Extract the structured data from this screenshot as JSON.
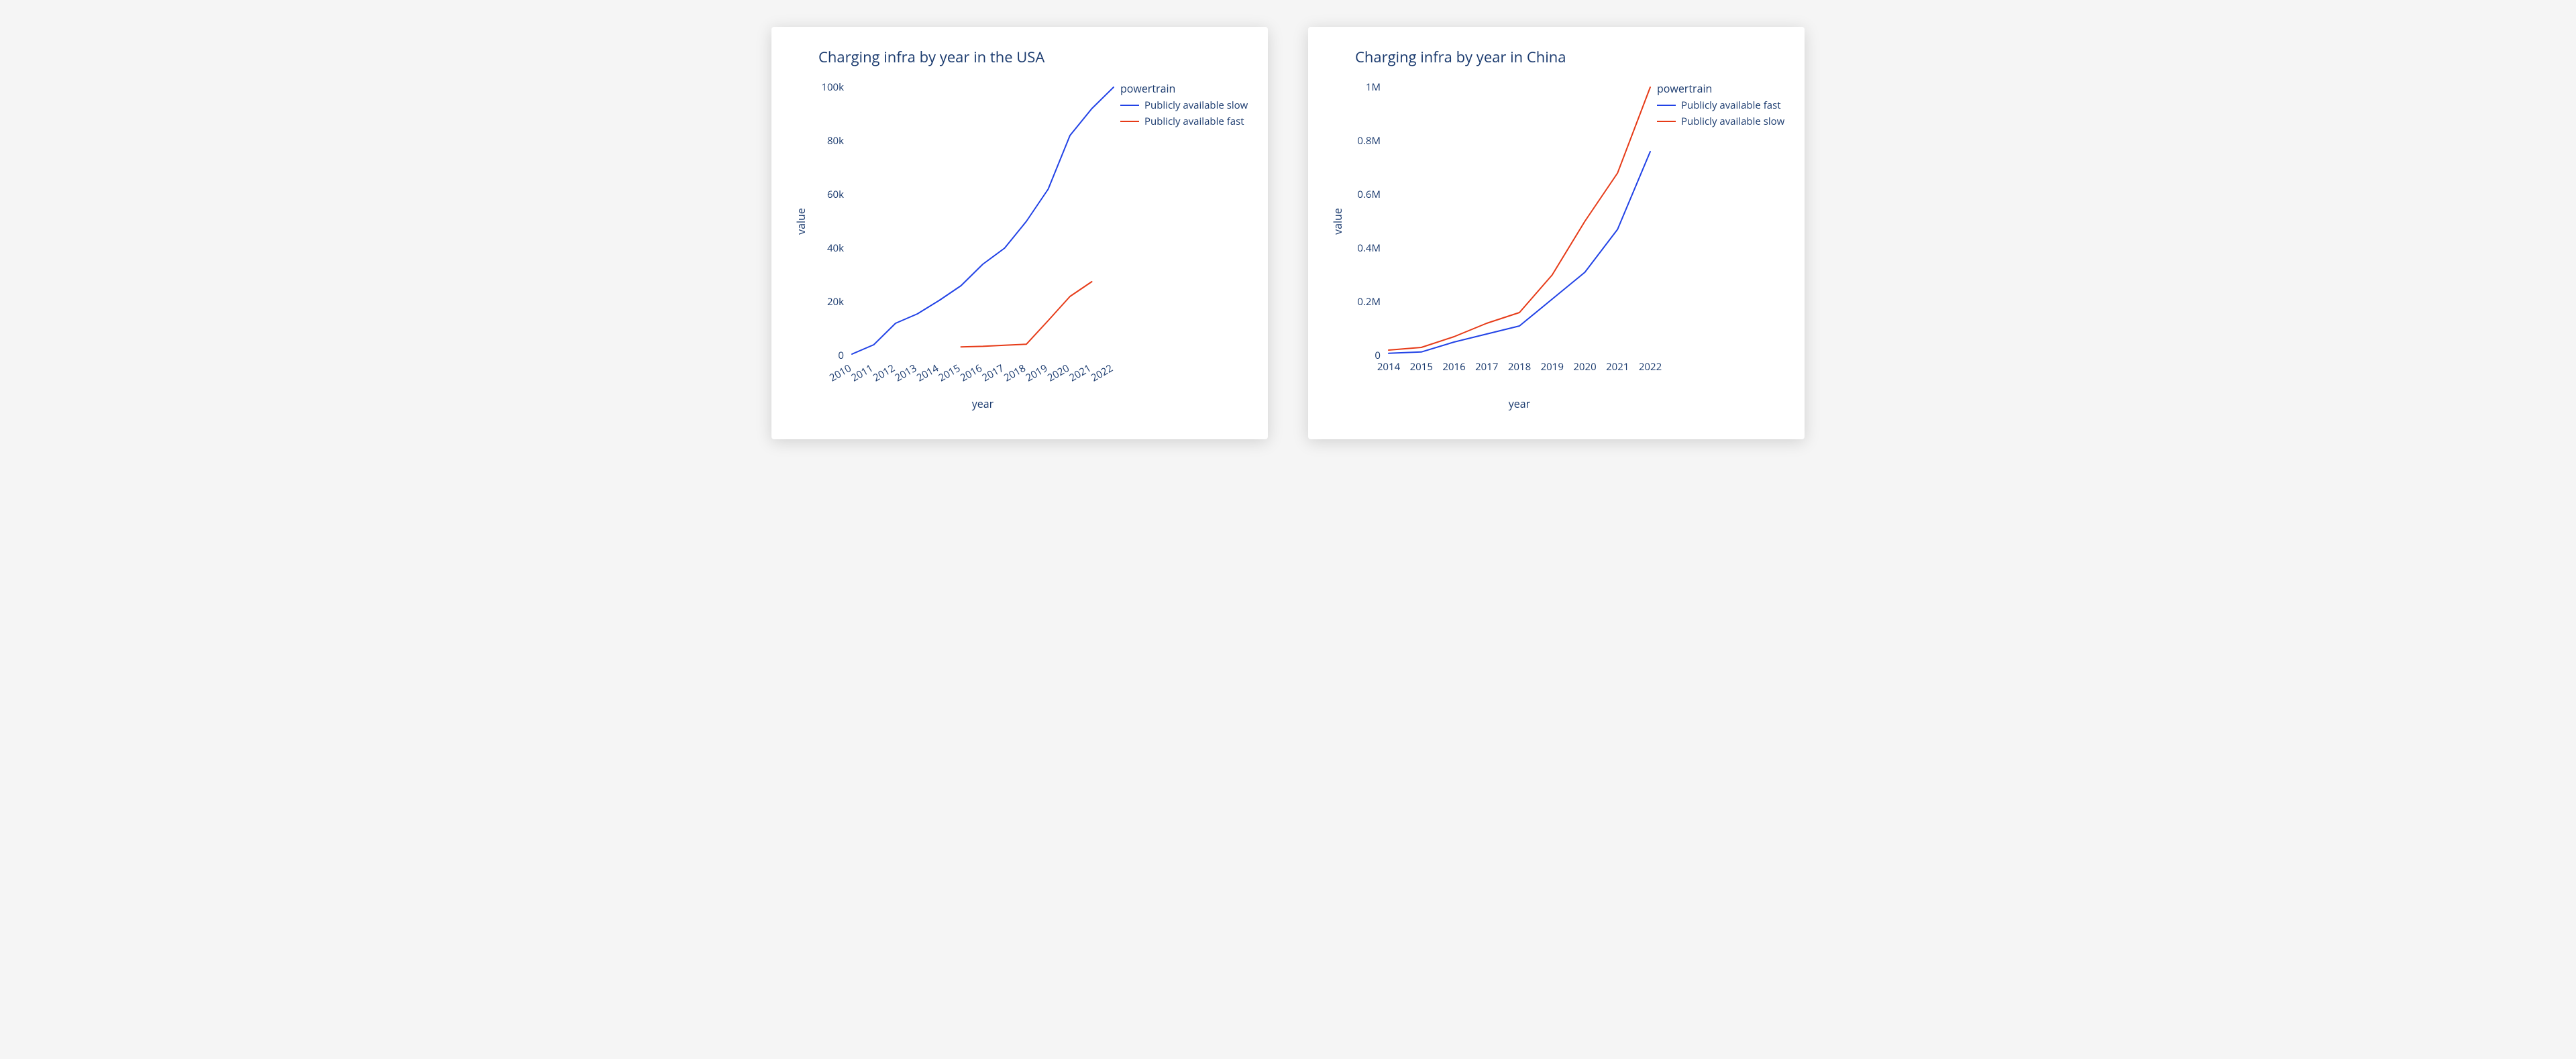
{
  "page": {
    "background_color": "#f5f5f5",
    "card_background": "#ffffff",
    "card_shadow": "0 4px 24px rgba(0,0,0,0.15)",
    "text_color": "#1a3a6e",
    "font_family": "Verdana, Open Sans, Arial, sans-serif"
  },
  "chart_usa": {
    "type": "line",
    "title": "Charging infra by year in the USA",
    "title_fontsize": 22,
    "xlabel": "year",
    "ylabel": "value",
    "label_fontsize": 16,
    "tick_fontsize": 15,
    "legend_title": "powertrain",
    "legend_position": "inside-top-right",
    "background_color": "#ffffff",
    "axis_color": "#1a3a6e",
    "line_width": 2,
    "x_tick_rotation": 30,
    "xlim": [
      2010,
      2022
    ],
    "ylim": [
      0,
      100000
    ],
    "yticks": [
      0,
      20000,
      40000,
      60000,
      80000,
      100000
    ],
    "ytick_labels": [
      "0",
      "20k",
      "40k",
      "60k",
      "80k",
      "100k"
    ],
    "xticks": [
      2010,
      2011,
      2012,
      2013,
      2014,
      2015,
      2016,
      2017,
      2018,
      2019,
      2020,
      2021,
      2022
    ],
    "series": [
      {
        "name": "Publicly available slow",
        "color": "#2142e6",
        "x": [
          2010,
          2011,
          2012,
          2013,
          2014,
          2015,
          2016,
          2017,
          2018,
          2019,
          2020,
          2021,
          2022
        ],
        "y": [
          500,
          4000,
          12000,
          15500,
          20500,
          26000,
          34000,
          40000,
          50000,
          62000,
          82000,
          92000,
          100000
        ]
      },
      {
        "name": "Publicly available fast",
        "color": "#e63a17",
        "x": [
          2015,
          2016,
          2017,
          2018,
          2019,
          2020,
          2021
        ],
        "y": [
          3200,
          3400,
          3800,
          4200,
          13000,
          22000,
          27500
        ]
      }
    ]
  },
  "chart_china": {
    "type": "line",
    "title": "Charging infra by year in China",
    "title_fontsize": 22,
    "xlabel": "year",
    "ylabel": "value",
    "label_fontsize": 16,
    "tick_fontsize": 15,
    "legend_title": "powertrain",
    "legend_position": "inside-top-right",
    "background_color": "#ffffff",
    "axis_color": "#1a3a6e",
    "line_width": 2,
    "x_tick_rotation": 0,
    "xlim": [
      2014,
      2022
    ],
    "ylim": [
      0,
      1000000
    ],
    "yticks": [
      0,
      200000,
      400000,
      600000,
      800000,
      1000000
    ],
    "ytick_labels": [
      "0",
      "0.2M",
      "0.4M",
      "0.6M",
      "0.8M",
      "1M"
    ],
    "xticks": [
      2014,
      2015,
      2016,
      2017,
      2018,
      2019,
      2020,
      2021,
      2022
    ],
    "series": [
      {
        "name": "Publicly available fast",
        "color": "#2142e6",
        "x": [
          2014,
          2015,
          2016,
          2017,
          2018,
          2019,
          2020,
          2021,
          2022
        ],
        "y": [
          8000,
          13000,
          50000,
          80000,
          110000,
          210000,
          310000,
          470000,
          760000
        ]
      },
      {
        "name": "Publicly available slow",
        "color": "#e63a17",
        "x": [
          2014,
          2015,
          2016,
          2017,
          2018,
          2019,
          2020,
          2021,
          2022
        ],
        "y": [
          20000,
          30000,
          70000,
          120000,
          160000,
          300000,
          500000,
          680000,
          1000000
        ]
      }
    ]
  }
}
